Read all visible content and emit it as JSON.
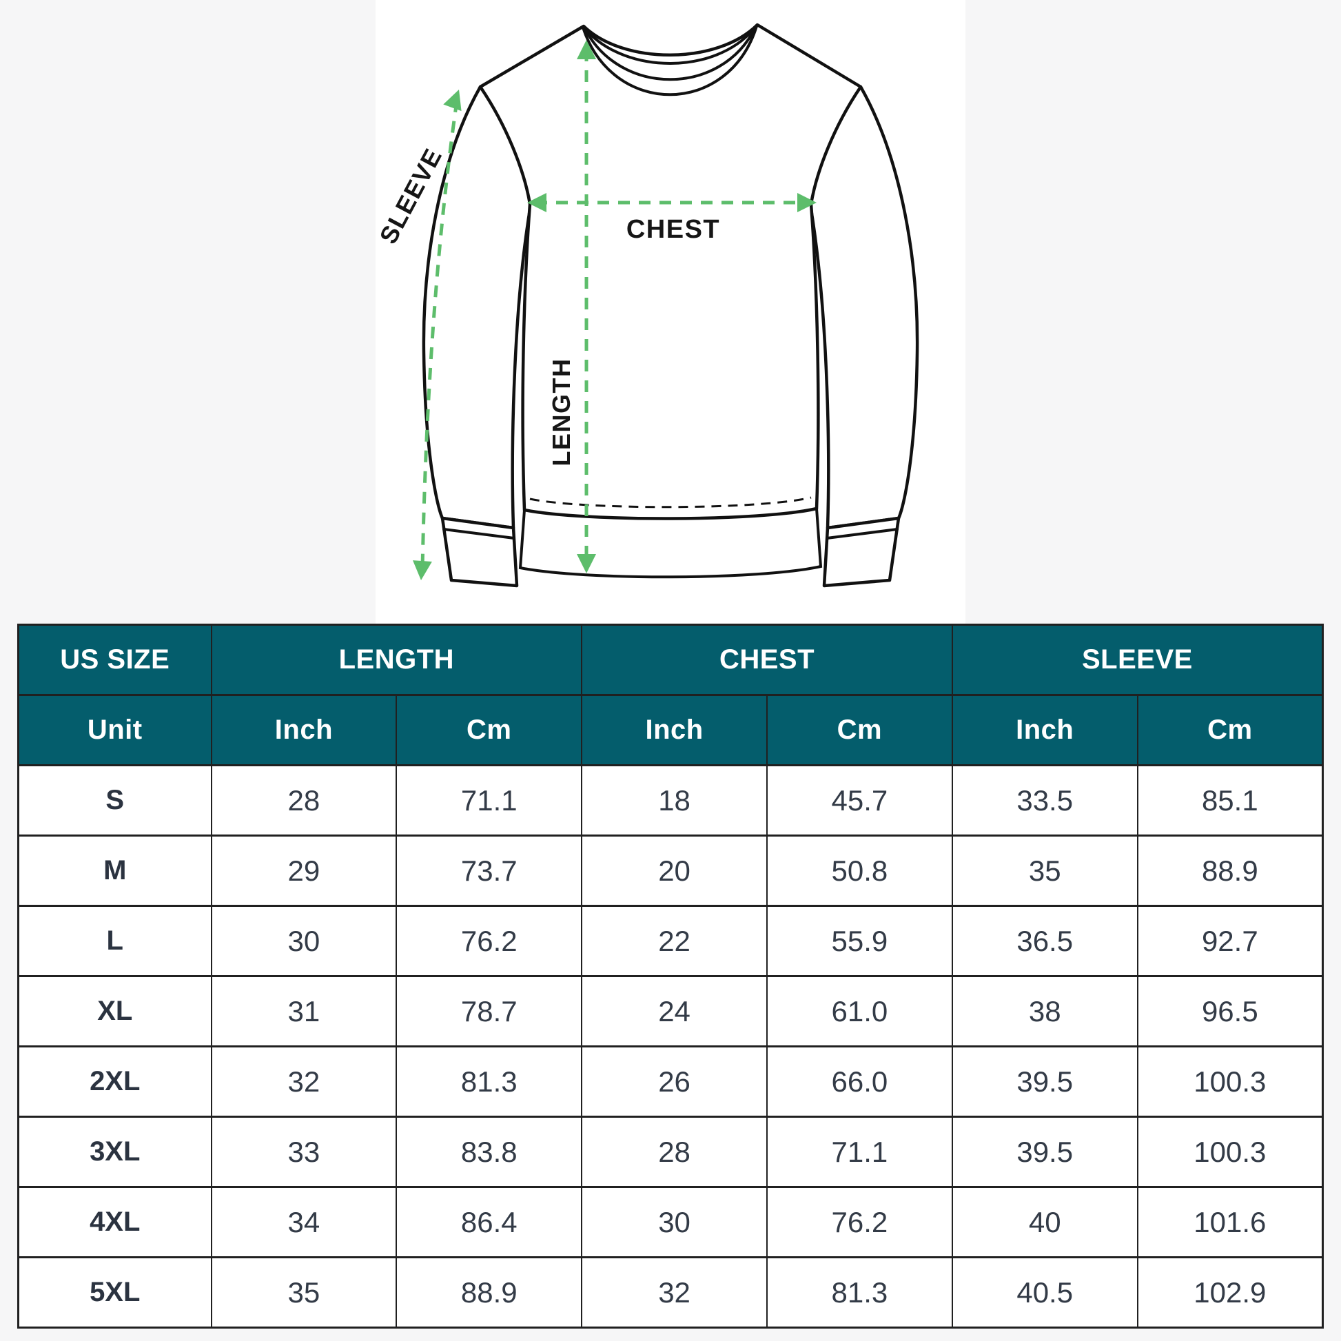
{
  "diagram": {
    "labels": {
      "sleeve": "SLEEVE",
      "chest": "CHEST",
      "length": "LENGTH"
    },
    "arrow_color": "#5dbd6b"
  },
  "table": {
    "header_color": "#045d6c",
    "group_headers": [
      {
        "label": "US SIZE",
        "span": 1
      },
      {
        "label": "LENGTH",
        "span": 2
      },
      {
        "label": "CHEST",
        "span": 2
      },
      {
        "label": "SLEEVE",
        "span": 2
      }
    ],
    "unit_row": [
      "Unit",
      "Inch",
      "Cm",
      "Inch",
      "Cm",
      "Inch",
      "Cm"
    ],
    "rows": [
      [
        "S",
        "28",
        "71.1",
        "18",
        "45.7",
        "33.5",
        "85.1"
      ],
      [
        "M",
        "29",
        "73.7",
        "20",
        "50.8",
        "35",
        "88.9"
      ],
      [
        "L",
        "30",
        "76.2",
        "22",
        "55.9",
        "36.5",
        "92.7"
      ],
      [
        "XL",
        "31",
        "78.7",
        "24",
        "61.0",
        "38",
        "96.5"
      ],
      [
        "2XL",
        "32",
        "81.3",
        "26",
        "66.0",
        "39.5",
        "100.3"
      ],
      [
        "3XL",
        "33",
        "83.8",
        "28",
        "71.1",
        "39.5",
        "100.3"
      ],
      [
        "4XL",
        "34",
        "86.4",
        "30",
        "76.2",
        "40",
        "101.6"
      ],
      [
        "5XL",
        "35",
        "88.9",
        "32",
        "81.3",
        "40.5",
        "102.9"
      ]
    ]
  }
}
